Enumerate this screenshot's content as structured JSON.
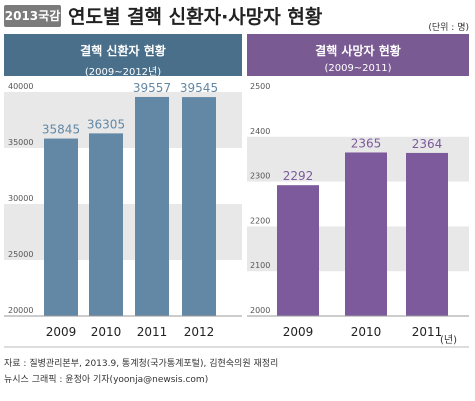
{
  "header": {
    "tag": "2013국감",
    "title": "연도별 결핵 신환자·사망자 현황",
    "unit": "(단위 : 명)"
  },
  "footer": {
    "year_suffix": "(년)",
    "source": "자료 : 질병관리본부, 2013.9, 통계청(국가통계포털), 김현숙의원 재정리",
    "credit": "뉴시스 그래픽 : 윤정아 기자(yoonja@newsis.com)"
  },
  "colors": {
    "left_header": "#4a6f8a",
    "left_bar": "#6288a6",
    "right_header": "#7a5a92",
    "right_bar": "#7c5a9c",
    "band": "#e8e8e8"
  },
  "chart_data": [
    {
      "type": "bar",
      "title": "결핵 신환자 현황",
      "subtitle": "(2009~2012년)",
      "categories": [
        "2009",
        "2010",
        "2011",
        "2012"
      ],
      "values": [
        35845,
        36305,
        39557,
        39545
      ],
      "ylim": [
        20000,
        40000
      ],
      "yticks": [
        20000,
        25000,
        30000,
        35000,
        40000
      ],
      "grid": "alternating bands"
    },
    {
      "type": "bar",
      "title": "결핵 사망자 현황",
      "subtitle": "(2009~2011)",
      "categories": [
        "2009",
        "2010",
        "2011"
      ],
      "values": [
        2292,
        2365,
        2364
      ],
      "ylim": [
        2000,
        2500
      ],
      "yticks": [
        2000,
        2100,
        2200,
        2300,
        2400,
        2500
      ],
      "grid": "alternating bands"
    }
  ]
}
